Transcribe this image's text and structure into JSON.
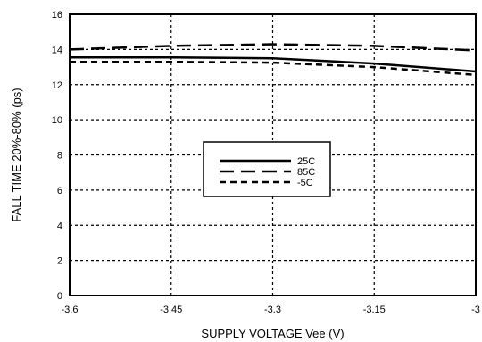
{
  "chart_data": {
    "type": "line",
    "title": "",
    "xlabel": "SUPPLY VOLTAGE Vee (V)",
    "ylabel": "FALL TIME 20%-80% (ps)",
    "xlim": [
      -3.6,
      -3.0
    ],
    "ylim": [
      0,
      16
    ],
    "x_ticks": [
      -3.6,
      -3.45,
      -3.3,
      -3.15,
      -3.0
    ],
    "x_tick_labels": [
      "-3.6",
      "-3.45",
      "-3.3",
      "-3.15",
      "-3"
    ],
    "y_ticks": [
      0,
      2,
      4,
      6,
      8,
      10,
      12,
      14,
      16
    ],
    "y_tick_labels": [
      "0",
      "2",
      "4",
      "6",
      "8",
      "10",
      "12",
      "14",
      "16"
    ],
    "grid": true,
    "legend_position": "center",
    "x": [
      -3.6,
      -3.45,
      -3.3,
      -3.15,
      -3.0
    ],
    "series": [
      {
        "name": "25C",
        "style": "solid",
        "values": [
          13.55,
          13.55,
          13.5,
          13.2,
          12.75
        ]
      },
      {
        "name": "85C",
        "style": "long-dash",
        "values": [
          14.0,
          14.2,
          14.3,
          14.2,
          13.95
        ]
      },
      {
        "name": "-5C",
        "style": "short-dash",
        "values": [
          13.3,
          13.3,
          13.25,
          13.0,
          12.55
        ]
      }
    ]
  }
}
